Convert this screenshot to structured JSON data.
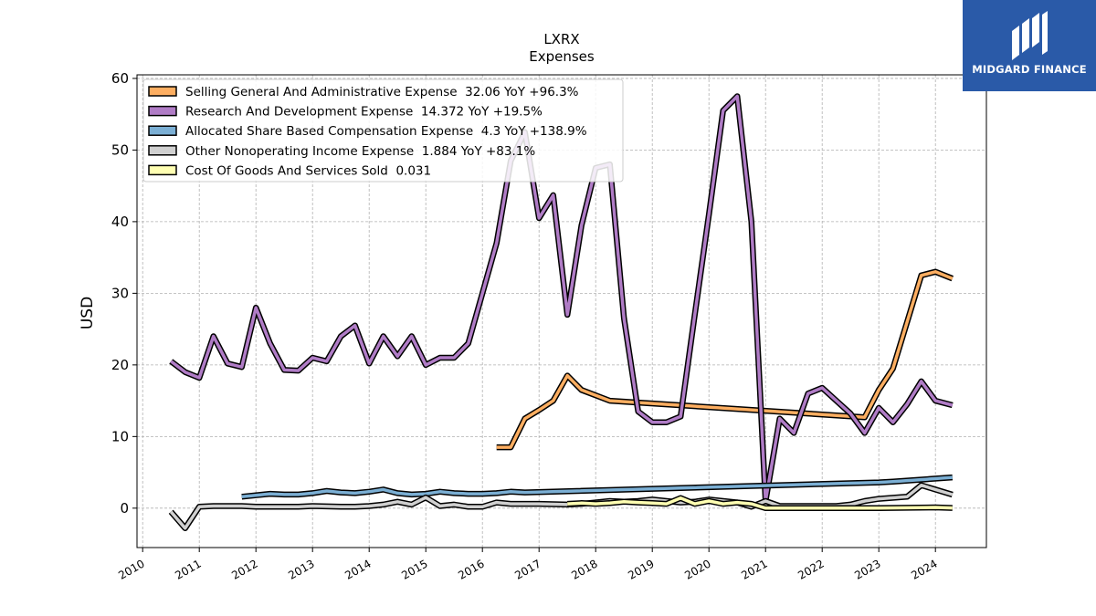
{
  "chart_data": {
    "type": "line",
    "title": "LXRX",
    "subtitle": "Expenses",
    "xlabel": "",
    "ylabel": "USD",
    "xlim": [
      2009.9,
      2024.9
    ],
    "ylim": [
      -5.5,
      60.5
    ],
    "yticks": [
      0,
      10,
      20,
      30,
      40,
      50,
      60
    ],
    "xticks": [
      "2010",
      "2011",
      "2012",
      "2013",
      "2014",
      "2015",
      "2016",
      "2017",
      "2018",
      "2019",
      "2020",
      "2021",
      "2022",
      "2023",
      "2024"
    ],
    "grid": true,
    "legend_position": "top-left",
    "series": [
      {
        "name": "Selling General And Administrative Expense  32.06 YoY +96.3%",
        "color": "#fdae61",
        "points": [
          [
            2016.25,
            8.5
          ],
          [
            2016.5,
            8.5
          ],
          [
            2016.75,
            12.5
          ],
          [
            2017.0,
            13.7
          ],
          [
            2017.25,
            15.0
          ],
          [
            2017.5,
            18.5
          ],
          [
            2017.75,
            16.5
          ],
          [
            2018.25,
            15.0
          ],
          [
            2022.75,
            12.7
          ],
          [
            2023.0,
            16.5
          ],
          [
            2023.25,
            19.5
          ],
          [
            2023.5,
            26.0
          ],
          [
            2023.75,
            32.5
          ],
          [
            2024.0,
            33.0
          ],
          [
            2024.3,
            32.06
          ]
        ]
      },
      {
        "name": "Research And Development Expense  14.372 YoY +19.5%",
        "color": "#b07cc6",
        "points": [
          [
            2010.5,
            20.5
          ],
          [
            2010.75,
            19.0
          ],
          [
            2011.0,
            18.2
          ],
          [
            2011.25,
            24.0
          ],
          [
            2011.5,
            20.2
          ],
          [
            2011.75,
            19.7
          ],
          [
            2012.0,
            28.0
          ],
          [
            2012.25,
            23.0
          ],
          [
            2012.5,
            19.3
          ],
          [
            2012.75,
            19.2
          ],
          [
            2013.0,
            21.0
          ],
          [
            2013.25,
            20.5
          ],
          [
            2013.5,
            24.0
          ],
          [
            2013.75,
            25.5
          ],
          [
            2014.0,
            20.2
          ],
          [
            2014.25,
            24.0
          ],
          [
            2014.5,
            21.2
          ],
          [
            2014.75,
            24.0
          ],
          [
            2015.0,
            20.0
          ],
          [
            2015.25,
            21.0
          ],
          [
            2015.5,
            21.0
          ],
          [
            2015.75,
            23.0
          ],
          [
            2016.0,
            30.0
          ],
          [
            2016.25,
            37.0
          ],
          [
            2016.5,
            48.5
          ],
          [
            2016.75,
            52.5
          ],
          [
            2017.0,
            40.5
          ],
          [
            2017.25,
            43.7
          ],
          [
            2017.5,
            27.0
          ],
          [
            2017.75,
            39.5
          ],
          [
            2018.0,
            47.5
          ],
          [
            2018.25,
            48.0
          ],
          [
            2018.5,
            26.5
          ],
          [
            2018.75,
            13.5
          ],
          [
            2019.0,
            12.0
          ],
          [
            2019.25,
            12.0
          ],
          [
            2019.5,
            12.8
          ],
          [
            2019.75,
            27.0
          ],
          [
            2020.0,
            41.0
          ],
          [
            2020.25,
            55.5
          ],
          [
            2020.5,
            57.5
          ],
          [
            2020.75,
            40.0
          ],
          [
            2021.0,
            1.0
          ],
          [
            2021.25,
            12.5
          ],
          [
            2021.5,
            10.5
          ],
          [
            2021.75,
            16.0
          ],
          [
            2022.0,
            16.8
          ],
          [
            2022.25,
            15.0
          ],
          [
            2022.5,
            13.2
          ],
          [
            2022.75,
            10.5
          ],
          [
            2023.0,
            14.0
          ],
          [
            2023.25,
            12.0
          ],
          [
            2023.5,
            14.5
          ],
          [
            2023.75,
            17.7
          ],
          [
            2024.0,
            15.0
          ],
          [
            2024.3,
            14.372
          ]
        ]
      },
      {
        "name": "Allocated Share Based Compensation Expense  4.3 YoY +138.9%",
        "color": "#7bafd4",
        "points": [
          [
            2011.75,
            1.6
          ],
          [
            2012.0,
            1.8
          ],
          [
            2012.25,
            2.0
          ],
          [
            2012.5,
            1.9
          ],
          [
            2012.75,
            1.9
          ],
          [
            2013.0,
            2.1
          ],
          [
            2013.25,
            2.4
          ],
          [
            2013.5,
            2.2
          ],
          [
            2013.75,
            2.1
          ],
          [
            2014.0,
            2.3
          ],
          [
            2014.25,
            2.6
          ],
          [
            2014.5,
            2.1
          ],
          [
            2014.75,
            1.9
          ],
          [
            2015.0,
            2.0
          ],
          [
            2015.25,
            2.3
          ],
          [
            2015.5,
            2.1
          ],
          [
            2015.75,
            2.0
          ],
          [
            2016.0,
            2.0
          ],
          [
            2016.25,
            2.1
          ],
          [
            2016.5,
            2.3
          ],
          [
            2016.75,
            2.2
          ],
          [
            2023.0,
            3.6
          ],
          [
            2023.25,
            3.7
          ],
          [
            2024.3,
            4.3
          ]
        ]
      },
      {
        "name": "Other Nonoperating Income Expense  1.884 YoY +83.1%",
        "color": "#d0d0d0",
        "points": [
          [
            2010.5,
            -0.5
          ],
          [
            2010.75,
            -2.8
          ],
          [
            2011.0,
            0.2
          ],
          [
            2011.25,
            0.3
          ],
          [
            2011.5,
            0.3
          ],
          [
            2011.75,
            0.3
          ],
          [
            2012.0,
            0.2
          ],
          [
            2012.5,
            0.2
          ],
          [
            2012.75,
            0.2
          ],
          [
            2013.0,
            0.3
          ],
          [
            2013.5,
            0.2
          ],
          [
            2013.75,
            0.2
          ],
          [
            2014.0,
            0.3
          ],
          [
            2014.25,
            0.5
          ],
          [
            2014.5,
            0.9
          ],
          [
            2014.75,
            0.5
          ],
          [
            2015.0,
            1.5
          ],
          [
            2015.25,
            0.3
          ],
          [
            2015.5,
            0.5
          ],
          [
            2015.75,
            0.2
          ],
          [
            2016.0,
            0.2
          ],
          [
            2016.25,
            0.8
          ],
          [
            2016.5,
            0.6
          ],
          [
            2017.0,
            0.6
          ],
          [
            2017.5,
            0.5
          ],
          [
            2017.75,
            0.6
          ],
          [
            2018.0,
            0.8
          ],
          [
            2018.25,
            1.0
          ],
          [
            2018.5,
            0.9
          ],
          [
            2018.75,
            1.0
          ],
          [
            2019.0,
            1.2
          ],
          [
            2019.25,
            1.0
          ],
          [
            2019.5,
            0.8
          ],
          [
            2019.75,
            0.9
          ],
          [
            2020.0,
            1.2
          ],
          [
            2020.25,
            1.0
          ],
          [
            2020.5,
            0.8
          ],
          [
            2020.75,
            0.2
          ],
          [
            2021.0,
            1.0
          ],
          [
            2021.25,
            0.3
          ],
          [
            2022.25,
            0.3
          ],
          [
            2022.5,
            0.5
          ],
          [
            2022.75,
            1.0
          ],
          [
            2023.0,
            1.3
          ],
          [
            2023.5,
            1.6
          ],
          [
            2023.75,
            3.2
          ],
          [
            2024.0,
            2.6
          ],
          [
            2024.3,
            1.884
          ]
        ]
      },
      {
        "name": "Cost Of Goods And Services Sold  0.031",
        "color": "#ffffb2",
        "points": [
          [
            2017.5,
            0.6
          ],
          [
            2017.75,
            0.7
          ],
          [
            2018.0,
            0.6
          ],
          [
            2018.25,
            0.7
          ],
          [
            2018.5,
            0.9
          ],
          [
            2018.75,
            0.8
          ],
          [
            2019.0,
            0.7
          ],
          [
            2019.25,
            0.6
          ],
          [
            2019.5,
            1.4
          ],
          [
            2019.75,
            0.6
          ],
          [
            2020.0,
            1.0
          ],
          [
            2020.25,
            0.6
          ],
          [
            2020.5,
            0.8
          ],
          [
            2020.75,
            0.6
          ],
          [
            2021.0,
            0.0
          ],
          [
            2021.5,
            0.0
          ],
          [
            2023.0,
            0.0
          ],
          [
            2024.0,
            0.1
          ],
          [
            2024.3,
            0.031
          ]
        ]
      }
    ]
  },
  "logo": {
    "text": "MIDGARD FINANCE",
    "background": "#2a5aa8"
  }
}
